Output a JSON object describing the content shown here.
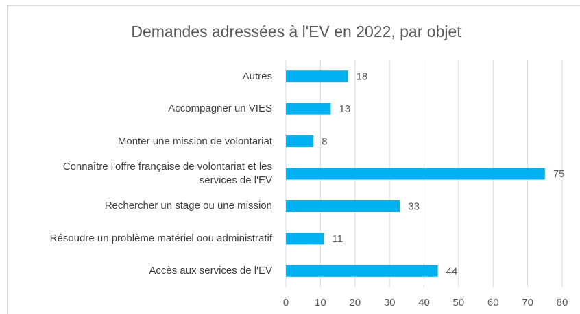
{
  "chart_data": {
    "type": "bar",
    "orientation": "horizontal",
    "title": "Demandes adressées à l'EV en 2022, par objet",
    "categories": [
      "Autres",
      "Accompagner un VIES",
      "Monter une mission de volontariat",
      "Connaître l'offre française de volontariat et les services de l'EV",
      "Rechercher un stage ou une mission",
      "Résoudre un problème matériel oou administratif",
      "Accès aux services de l'EV"
    ],
    "values": [
      18,
      13,
      8,
      75,
      33,
      11,
      44
    ],
    "color": "#00b0f0",
    "xlim": [
      0,
      80
    ],
    "xticks": [
      0,
      10,
      20,
      30,
      40,
      50,
      60,
      70,
      80
    ],
    "grid": true
  }
}
